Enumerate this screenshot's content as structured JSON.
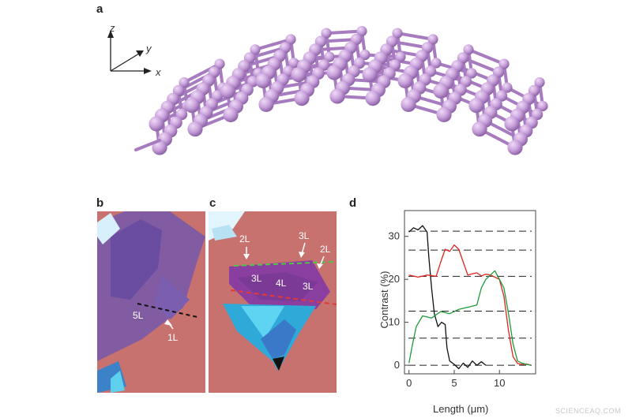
{
  "panels": {
    "a": {
      "label": "a",
      "axes": {
        "z": "z",
        "y": "y",
        "x": "x"
      }
    },
    "b": {
      "label": "b",
      "annotations": [
        "5L",
        "1L"
      ]
    },
    "c": {
      "label": "c",
      "annotations": [
        "2L",
        "3L",
        "2L",
        "3L",
        "4L",
        "3L"
      ]
    },
    "d": {
      "label": "d"
    }
  },
  "colors": {
    "atom": "#c9a2dc",
    "bond": "#a77bbf",
    "substrate": "#c7726e",
    "flake_violet": "#6c4fa6",
    "flake_blue": "#2ba9d8",
    "black_series": "#111111",
    "red_series": "#e0241f",
    "green_series": "#1f9a3a"
  },
  "watermark": "SCIENCEAQ.COM",
  "chart_data": {
    "type": "line",
    "xlabel": "Length (μm)",
    "ylabel": "Contrast (%)",
    "xlim": [
      -0.5,
      14
    ],
    "ylim": [
      -2,
      36
    ],
    "xticks": [
      0,
      5,
      10
    ],
    "yticks": [
      0,
      10,
      20,
      30
    ],
    "dashed_levels": [
      0,
      6.3,
      12.6,
      20.7,
      26.8,
      31.2
    ],
    "grid": false,
    "series": [
      {
        "color": "#111111",
        "points": [
          [
            0,
            31
          ],
          [
            0.5,
            32
          ],
          [
            1,
            31.5
          ],
          [
            1.5,
            32.5
          ],
          [
            2,
            31
          ],
          [
            2.2,
            25
          ],
          [
            2.5,
            18
          ],
          [
            2.8,
            12
          ],
          [
            3.2,
            9
          ],
          [
            3.6,
            10
          ],
          [
            4,
            9.5
          ],
          [
            4.2,
            4
          ],
          [
            4.5,
            1
          ],
          [
            5,
            0.2
          ],
          [
            5.5,
            -0.8
          ],
          [
            6,
            0.5
          ],
          [
            6.5,
            -0.5
          ],
          [
            7,
            1
          ],
          [
            7.5,
            0
          ],
          [
            8,
            0.8
          ],
          [
            8.5,
            0
          ]
        ]
      },
      {
        "color": "#e0241f",
        "points": [
          [
            0,
            21
          ],
          [
            1,
            20.5
          ],
          [
            2,
            21
          ],
          [
            3,
            20.7
          ],
          [
            3.5,
            24
          ],
          [
            4,
            27
          ],
          [
            4.5,
            26.5
          ],
          [
            5,
            28
          ],
          [
            5.5,
            27
          ],
          [
            6,
            24
          ],
          [
            6.5,
            21
          ],
          [
            7,
            21.3
          ],
          [
            7.5,
            21.5
          ],
          [
            8,
            20.8
          ],
          [
            8.5,
            21.2
          ],
          [
            9,
            21
          ],
          [
            9.5,
            20.5
          ],
          [
            10,
            20
          ],
          [
            10.5,
            16
          ],
          [
            11,
            8
          ],
          [
            11.5,
            2
          ],
          [
            12,
            0.4
          ],
          [
            12.5,
            0.2
          ],
          [
            13,
            0.3
          ],
          [
            13.5,
            0
          ]
        ]
      },
      {
        "color": "#1f9a3a",
        "points": [
          [
            0,
            0.5
          ],
          [
            0.4,
            5
          ],
          [
            0.8,
            9
          ],
          [
            1.5,
            11.5
          ],
          [
            2.5,
            11
          ],
          [
            3.5,
            12.5
          ],
          [
            4.5,
            12
          ],
          [
            5.5,
            13
          ],
          [
            6.5,
            13.5
          ],
          [
            7.5,
            14
          ],
          [
            8,
            18
          ],
          [
            8.5,
            20
          ],
          [
            9,
            21
          ],
          [
            9.5,
            22
          ],
          [
            10,
            20
          ],
          [
            10.5,
            18
          ],
          [
            11,
            12
          ],
          [
            11.5,
            5
          ],
          [
            12,
            1
          ],
          [
            12.5,
            0.5
          ],
          [
            13,
            0.2
          ],
          [
            13.5,
            0
          ]
        ]
      }
    ]
  }
}
